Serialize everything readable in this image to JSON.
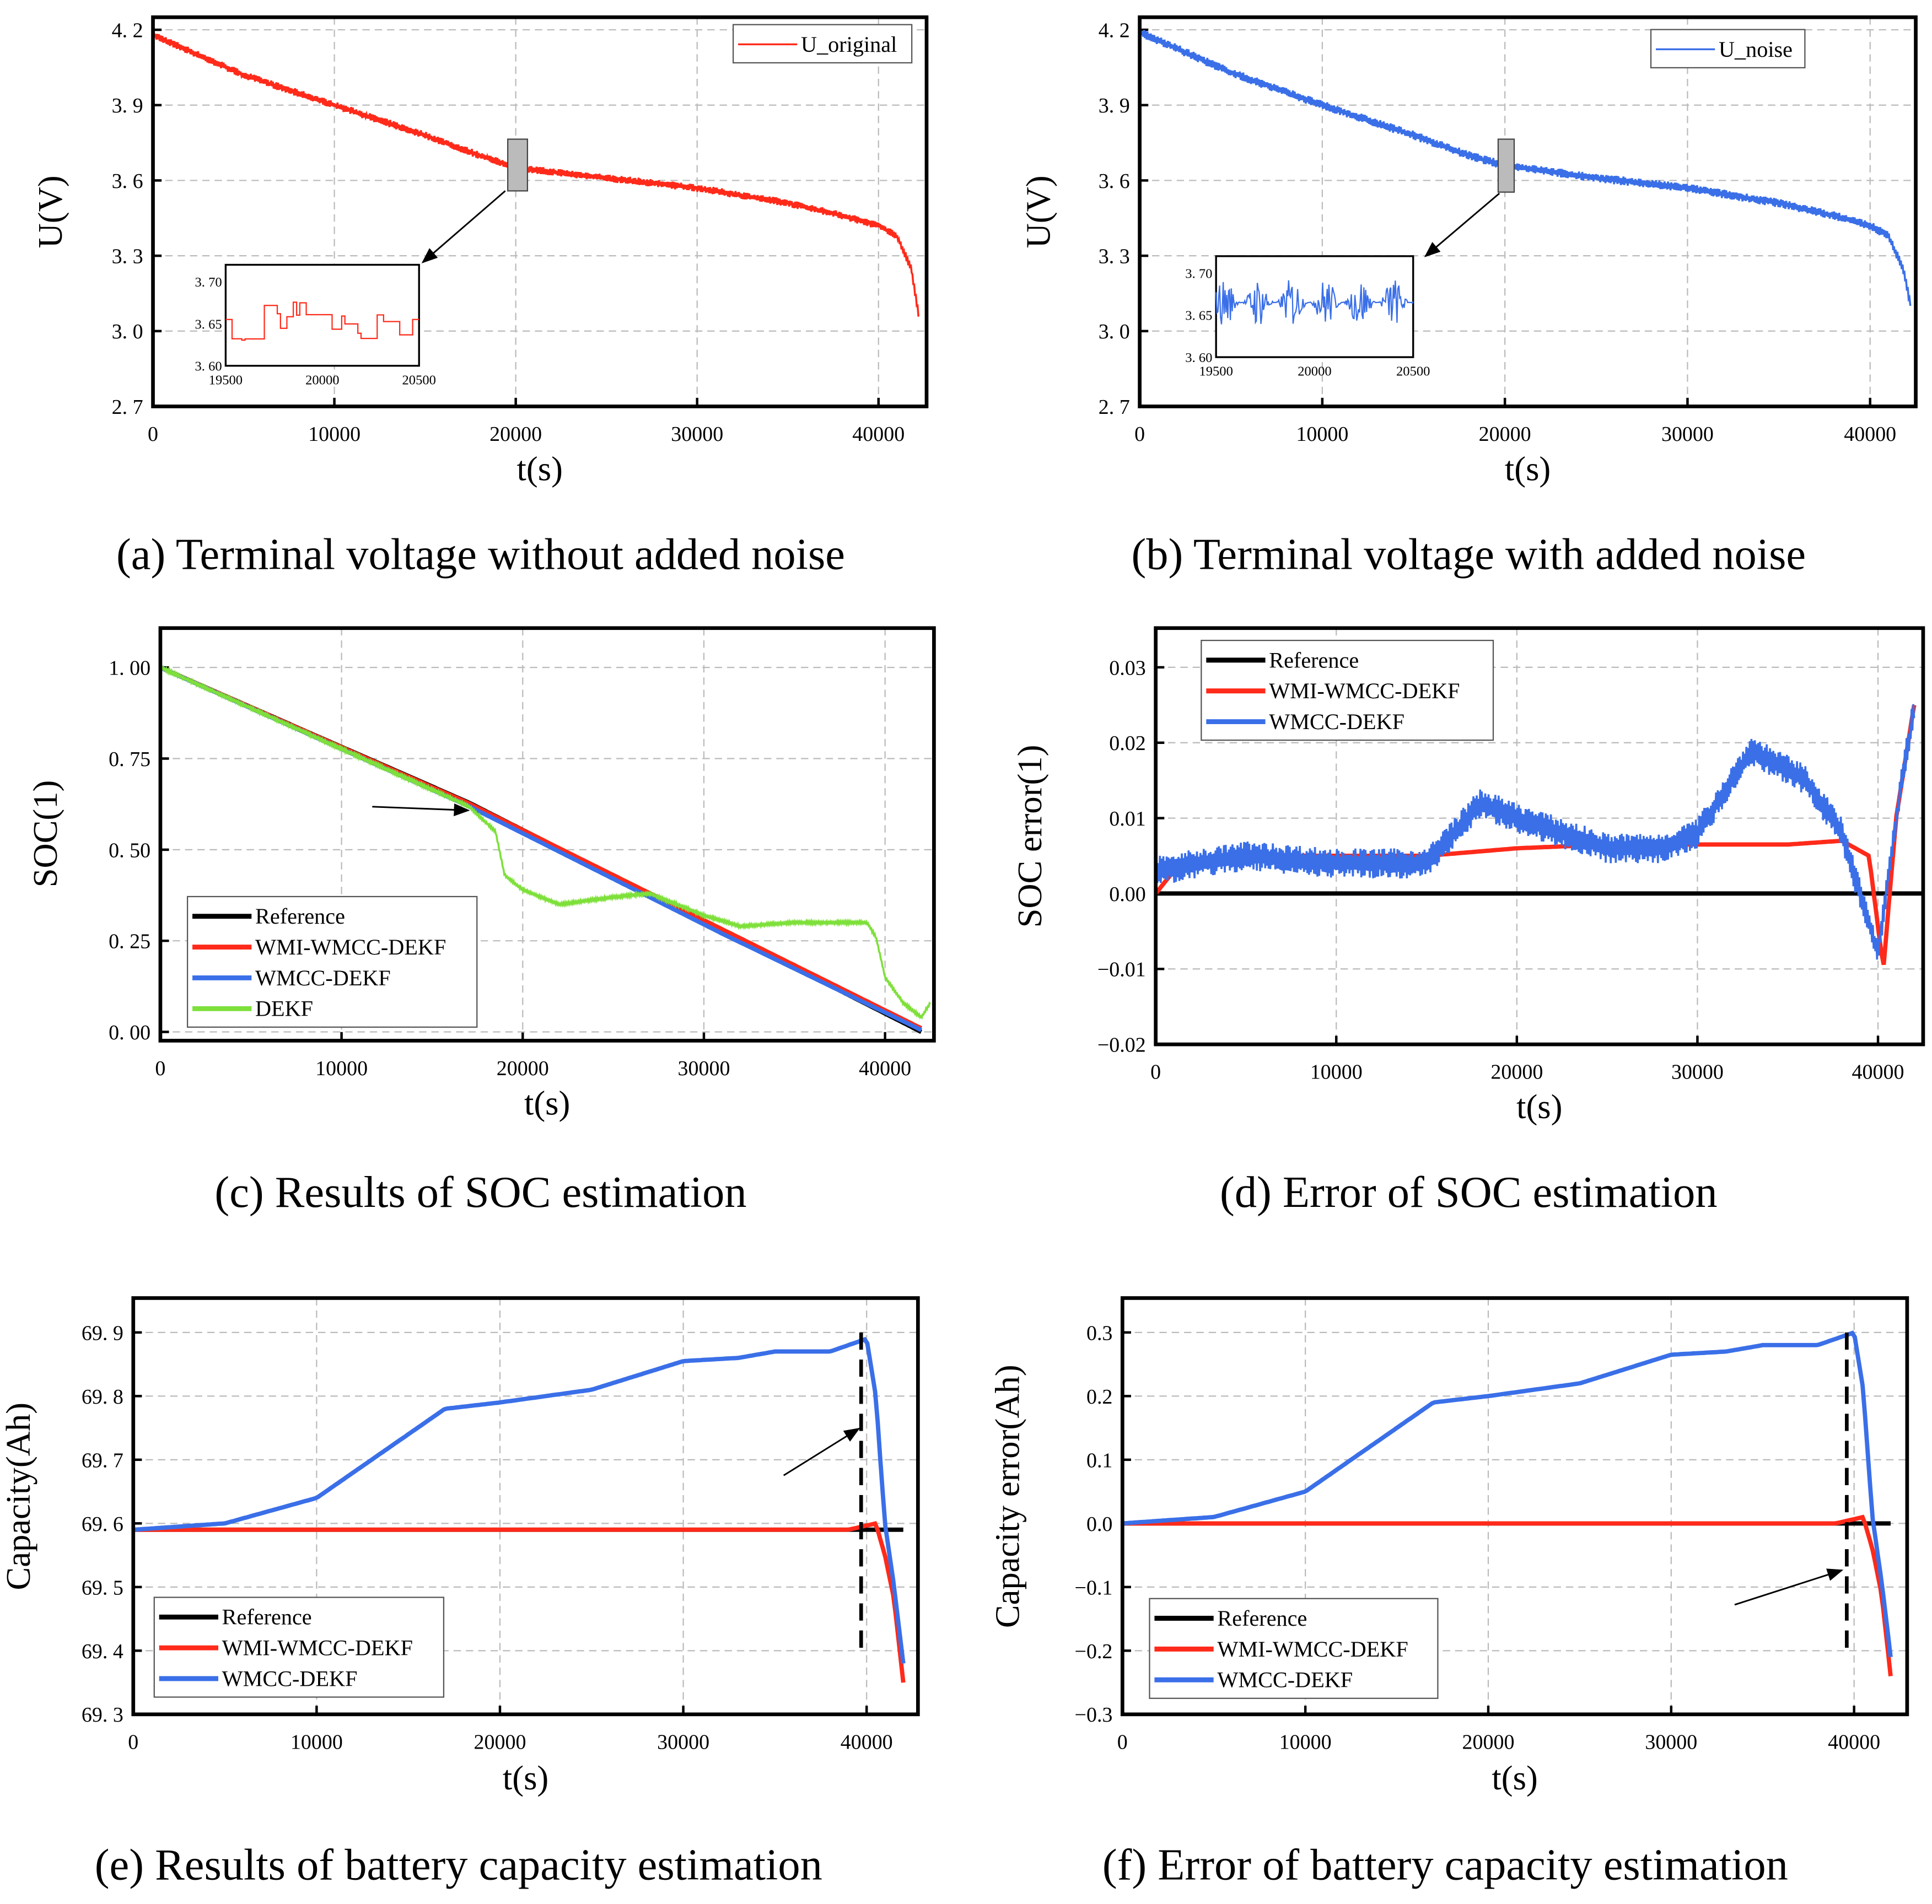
{
  "chart_data": [
    {
      "type": "line",
      "caption": "(a) Terminal voltage without added noise",
      "xlabel": "t(s)",
      "ylabel": "U(V)",
      "xlim": [
        0,
        42650
      ],
      "ylim": [
        2.7,
        4.25
      ],
      "xticks": [
        0,
        10000,
        20000,
        30000,
        40000
      ],
      "yticks": [
        2.7,
        3.0,
        3.3,
        3.6,
        3.9,
        4.2
      ],
      "ytick_labels": [
        "2. 7",
        "3. 0",
        "3. 3",
        "3. 6",
        "3. 9",
        "4. 2"
      ],
      "series": [
        {
          "name": "U_original",
          "color": "#ff2a1a",
          "ripple": 0.03,
          "points": [
            [
              0,
              4.18
            ],
            [
              5000,
              4.02
            ],
            [
              10000,
              3.9
            ],
            [
              15000,
              3.78
            ],
            [
              18000,
              3.7
            ],
            [
              20000,
              3.65
            ],
            [
              25000,
              3.61
            ],
            [
              30000,
              3.57
            ],
            [
              35000,
              3.51
            ],
            [
              38000,
              3.46
            ],
            [
              40000,
              3.42
            ],
            [
              41000,
              3.38
            ],
            [
              41800,
              3.25
            ],
            [
              42200,
              3.07
            ]
          ]
        }
      ],
      "inset": {
        "xlim": [
          19500,
          20500
        ],
        "ylim": [
          3.6,
          3.72
        ],
        "xticks": [
          19500,
          20000,
          20500
        ],
        "yticks": [
          3.6,
          3.65,
          3.7
        ],
        "ytick_labels": [
          "3. 60",
          "3. 65",
          "3. 70"
        ],
        "center": 3.655,
        "amp": 0.025
      }
    },
    {
      "type": "line",
      "caption": "(b) Terminal voltage with added noise",
      "xlabel": "t(s)",
      "ylabel": "U(V)",
      "xlim": [
        0,
        42500
      ],
      "ylim": [
        2.7,
        4.25
      ],
      "xticks": [
        0,
        10000,
        20000,
        30000,
        40000
      ],
      "yticks": [
        2.7,
        3.0,
        3.3,
        3.6,
        3.9,
        4.2
      ],
      "ytick_labels": [
        "2. 7",
        "3. 0",
        "3. 3",
        "3. 6",
        "3. 9",
        "4. 2"
      ],
      "series": [
        {
          "name": "U_noise",
          "color": "#3a6fe8",
          "ripple": 0.035,
          "points": [
            [
              0,
              4.19
            ],
            [
              5000,
              4.03
            ],
            [
              10000,
              3.9
            ],
            [
              15000,
              3.78
            ],
            [
              18000,
              3.7
            ],
            [
              20000,
              3.66
            ],
            [
              25000,
              3.61
            ],
            [
              30000,
              3.57
            ],
            [
              35000,
              3.51
            ],
            [
              38000,
              3.46
            ],
            [
              40000,
              3.42
            ],
            [
              41000,
              3.38
            ],
            [
              41800,
              3.25
            ],
            [
              42200,
              3.11
            ]
          ]
        }
      ],
      "inset": {
        "xlim": [
          19500,
          20500
        ],
        "ylim": [
          3.6,
          3.72
        ],
        "xticks": [
          19500,
          20000,
          20500
        ],
        "yticks": [
          3.6,
          3.65,
          3.7
        ],
        "ytick_labels": [
          "3. 60",
          "3. 65",
          "3. 70"
        ],
        "center": 3.665,
        "amp": 0.03
      }
    },
    {
      "type": "line",
      "caption": "(c) Results of SOC estimation",
      "xlabel": "t(s)",
      "ylabel": "SOC(1)",
      "xlim": [
        0,
        42700
      ],
      "ylim": [
        -0.024,
        1.108
      ],
      "xticks": [
        0,
        10000,
        20000,
        30000,
        40000
      ],
      "yticks": [
        0,
        0.25,
        0.5,
        0.75,
        1.0
      ],
      "ytick_labels": [
        "0. 00",
        "0. 25",
        "0. 50",
        "0. 75",
        "1. 00"
      ],
      "series": [
        {
          "name": "Reference",
          "color": "#000000",
          "ripple": 0,
          "points": [
            [
              0,
              1
            ],
            [
              17000,
              0.63
            ],
            [
              42000,
              0.0
            ]
          ]
        },
        {
          "name": "WMI-WMCC-DEKF",
          "color": "#ff2a1a",
          "ripple": 0,
          "points": [
            [
              0,
              1
            ],
            [
              17000,
              0.628
            ],
            [
              42000,
              0.01
            ]
          ]
        },
        {
          "name": "WMCC-DEKF",
          "color": "#3a6fe8",
          "ripple": 0,
          "points": [
            [
              0,
              1
            ],
            [
              17000,
              0.62
            ],
            [
              31000,
              0.27
            ],
            [
              42000,
              0.005
            ]
          ]
        },
        {
          "name": "DEKF",
          "color": "#7ee03a",
          "ripple": 0.008,
          "points": [
            [
              0,
              1
            ],
            [
              17000,
              0.62
            ],
            [
              18500,
              0.55
            ],
            [
              19000,
              0.43
            ],
            [
              20000,
              0.39
            ],
            [
              22000,
              0.35
            ],
            [
              25000,
              0.37
            ],
            [
              27000,
              0.38
            ],
            [
              30000,
              0.32
            ],
            [
              32000,
              0.29
            ],
            [
              35000,
              0.3
            ],
            [
              39000,
              0.3
            ],
            [
              39500,
              0.26
            ],
            [
              40000,
              0.15
            ],
            [
              41000,
              0.08
            ],
            [
              42000,
              0.04
            ],
            [
              42500,
              0.08
            ]
          ]
        }
      ]
    },
    {
      "type": "line",
      "caption": "(d) Error of SOC estimation",
      "xlabel": "t(s)",
      "ylabel": "SOC error(1)",
      "xlim": [
        0,
        42500
      ],
      "ylim": [
        -0.02,
        0.0352
      ],
      "xticks": [
        0,
        10000,
        20000,
        30000,
        40000
      ],
      "yticks": [
        -0.02,
        -0.01,
        0,
        0.01,
        0.02,
        0.03
      ],
      "ytick_labels": [
        "−0.02",
        "−0.01",
        "0.00",
        "0.01",
        "0.02",
        "0.03"
      ],
      "series": [
        {
          "name": "Reference",
          "color": "#000000",
          "ripple": 0,
          "points": [
            [
              0,
              0
            ],
            [
              42500,
              0
            ]
          ]
        },
        {
          "name": "WMI-WMCC-DEKF",
          "color": "#ff2a1a",
          "ripple": 0,
          "points": [
            [
              0,
              0
            ],
            [
              1000,
              0.003
            ],
            [
              5000,
              0.005
            ],
            [
              15000,
              0.005
            ],
            [
              20000,
              0.006
            ],
            [
              25000,
              0.0065
            ],
            [
              35000,
              0.0065
            ],
            [
              38000,
              0.007
            ],
            [
              39500,
              0.005
            ],
            [
              40300,
              -0.01
            ],
            [
              41000,
              0.01
            ],
            [
              42000,
              0.025
            ]
          ]
        },
        {
          "name": "WMCC-DEKF",
          "color": "#3a6fe8",
          "ripple": 0.004,
          "points": [
            [
              0,
              0.003
            ],
            [
              5000,
              0.005
            ],
            [
              10000,
              0.004
            ],
            [
              15000,
              0.004
            ],
            [
              18000,
              0.012
            ],
            [
              20000,
              0.01
            ],
            [
              25000,
              0.006
            ],
            [
              28000,
              0.006
            ],
            [
              30000,
              0.008
            ],
            [
              33000,
              0.019
            ],
            [
              36000,
              0.015
            ],
            [
              38000,
              0.008
            ],
            [
              40000,
              -0.008
            ],
            [
              41000,
              0.01
            ],
            [
              42000,
              0.025
            ]
          ]
        }
      ]
    },
    {
      "type": "line",
      "caption": "(e) Results of battery capacity estimation",
      "xlabel": "t(s)",
      "ylabel": "Capacity(Ah)",
      "xlim": [
        0,
        42800
      ],
      "ylim": [
        69.3,
        69.954
      ],
      "xticks": [
        0,
        10000,
        20000,
        30000,
        40000
      ],
      "yticks": [
        69.3,
        69.4,
        69.5,
        69.6,
        69.7,
        69.8,
        69.9
      ],
      "ytick_labels": [
        "69. 3",
        "69. 4",
        "69. 5",
        "69. 6",
        "69. 7",
        "69. 8",
        "69. 9"
      ],
      "vline": {
        "x": 39700,
        "y": [
          69.4,
          69.9
        ]
      },
      "series": [
        {
          "name": "Reference",
          "color": "#000000",
          "ripple": 0,
          "points": [
            [
              0,
              69.59
            ],
            [
              42000,
              69.59
            ]
          ]
        },
        {
          "name": "WMI-WMCC-DEKF",
          "color": "#ff2a1a",
          "ripple": 0,
          "points": [
            [
              0,
              69.59
            ],
            [
              39000,
              69.59
            ],
            [
              40500,
              69.6
            ],
            [
              41000,
              69.55
            ],
            [
              41500,
              69.48
            ],
            [
              42000,
              69.35
            ]
          ]
        },
        {
          "name": "WMCC-DEKF",
          "color": "#3a6fe8",
          "ripple": 0,
          "points": [
            [
              0,
              69.59
            ],
            [
              5000,
              69.6
            ],
            [
              10000,
              69.64
            ],
            [
              15000,
              69.74
            ],
            [
              17000,
              69.78
            ],
            [
              20000,
              69.79
            ],
            [
              25000,
              69.81
            ],
            [
              30000,
              69.855
            ],
            [
              33000,
              69.86
            ],
            [
              35000,
              69.87
            ],
            [
              38000,
              69.87
            ],
            [
              40000,
              69.89
            ],
            [
              40500,
              69.8
            ],
            [
              41000,
              69.6
            ],
            [
              41500,
              69.5
            ],
            [
              42000,
              69.38
            ]
          ]
        }
      ]
    },
    {
      "type": "line",
      "caption": "(f) Error of battery capacity estimation",
      "xlabel": "t(s)",
      "ylabel": "Capacity error(Ah)",
      "xlim": [
        0,
        42900
      ],
      "ylim": [
        -0.3,
        0.354
      ],
      "xticks": [
        0,
        10000,
        20000,
        30000,
        40000
      ],
      "yticks": [
        -0.3,
        -0.2,
        -0.1,
        0,
        0.1,
        0.2,
        0.3
      ],
      "ytick_labels": [
        "−0.3",
        "−0.2",
        "−0.1",
        "0.0",
        "0.1",
        "0.2",
        "0.3"
      ],
      "vline": {
        "x": 39600,
        "y": [
          -0.2,
          0.3
        ]
      },
      "series": [
        {
          "name": "Reference",
          "color": "#000000",
          "ripple": 0,
          "points": [
            [
              0,
              0
            ],
            [
              42000,
              0
            ]
          ]
        },
        {
          "name": "WMI-WMCC-DEKF",
          "color": "#ff2a1a",
          "ripple": 0,
          "points": [
            [
              0,
              0
            ],
            [
              39000,
              0
            ],
            [
              40500,
              0.01
            ],
            [
              41000,
              -0.04
            ],
            [
              41500,
              -0.11
            ],
            [
              42000,
              -0.24
            ]
          ]
        },
        {
          "name": "WMCC-DEKF",
          "color": "#3a6fe8",
          "ripple": 0,
          "points": [
            [
              0,
              0
            ],
            [
              5000,
              0.01
            ],
            [
              10000,
              0.05
            ],
            [
              15000,
              0.15
            ],
            [
              17000,
              0.19
            ],
            [
              20000,
              0.2
            ],
            [
              25000,
              0.22
            ],
            [
              30000,
              0.265
            ],
            [
              33000,
              0.27
            ],
            [
              35000,
              0.28
            ],
            [
              38000,
              0.28
            ],
            [
              40000,
              0.3
            ],
            [
              40500,
              0.21
            ],
            [
              41000,
              0.01
            ],
            [
              41500,
              -0.09
            ],
            [
              42000,
              -0.21
            ]
          ]
        }
      ]
    }
  ]
}
